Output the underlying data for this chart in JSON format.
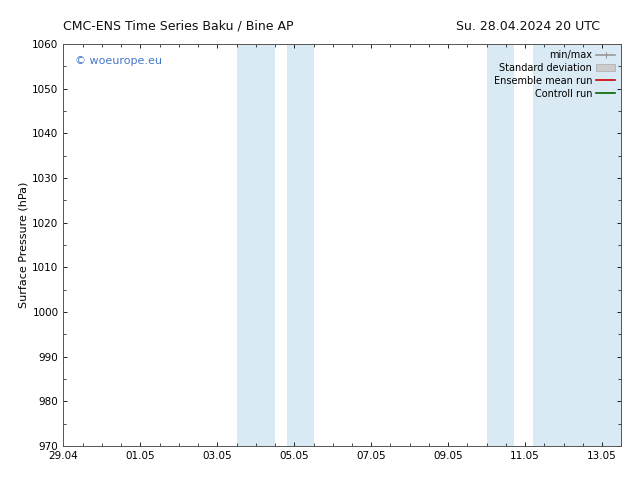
{
  "title_left": "CMC-ENS Time Series Baku / Bine AP",
  "title_right": "Su. 28.04.2024 20 UTC",
  "ylabel": "Surface Pressure (hPa)",
  "ylim": [
    970,
    1060
  ],
  "yticks": [
    970,
    980,
    990,
    1000,
    1010,
    1020,
    1030,
    1040,
    1050,
    1060
  ],
  "xlim": [
    0,
    14.5
  ],
  "xtick_labels": [
    "29.04",
    "01.05",
    "03.05",
    "05.05",
    "07.05",
    "09.05",
    "11.05",
    "13.05"
  ],
  "xtick_positions_days": [
    0,
    2,
    4,
    6,
    8,
    10,
    12,
    14
  ],
  "shaded_bands": [
    {
      "x_start_days": 4.5,
      "x_end_days": 5.5
    },
    {
      "x_start_days": 5.8,
      "x_end_days": 6.5
    },
    {
      "x_start_days": 11.0,
      "x_end_days": 11.7
    },
    {
      "x_start_days": 12.2,
      "x_end_days": 14.5
    }
  ],
  "shade_color": "#daeaf5",
  "watermark_text": "© woeurope.eu",
  "watermark_color": "#4477cc",
  "legend_items": [
    {
      "label": "min/max",
      "color": "#999999",
      "lw": 1.2
    },
    {
      "label": "Standard deviation",
      "color": "#cccccc",
      "lw": 6
    },
    {
      "label": "Ensemble mean run",
      "color": "#cc0000",
      "lw": 1.2
    },
    {
      "label": "Controll run",
      "color": "#006600",
      "lw": 1.2
    }
  ],
  "bg_color": "#ffffff",
  "spine_color": "#555555",
  "title_fontsize": 9,
  "axis_label_fontsize": 8,
  "tick_fontsize": 7.5,
  "legend_fontsize": 7,
  "watermark_fontsize": 8
}
